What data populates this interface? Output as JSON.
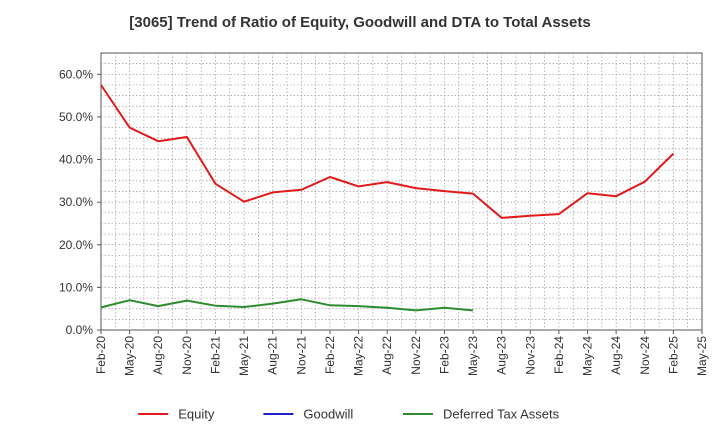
{
  "chart_data": {
    "type": "line",
    "title": "[3065]  Trend of Ratio of Equity, Goodwill and DTA to Total Assets",
    "xlabel": "",
    "ylabel": "",
    "x_ticks": [
      "Feb-20",
      "May-20",
      "Aug-20",
      "Nov-20",
      "Feb-21",
      "May-21",
      "Aug-21",
      "Nov-21",
      "Feb-22",
      "May-22",
      "Aug-22",
      "Nov-22",
      "Feb-23",
      "May-23",
      "Aug-23",
      "Nov-23",
      "Feb-24",
      "May-24",
      "Aug-24",
      "Nov-24",
      "Feb-25",
      "May-25"
    ],
    "y_ticks": [
      "0.0%",
      "10.0%",
      "20.0%",
      "30.0%",
      "40.0%",
      "50.0%",
      "60.0%"
    ],
    "y_tick_values": [
      0,
      10,
      20,
      30,
      40,
      50,
      60
    ],
    "ylim": [
      0,
      65
    ],
    "grid": true,
    "legend_position": "bottom",
    "series": [
      {
        "name": "Equity",
        "color": "#e31a1c",
        "x": [
          "Feb-20",
          "May-20",
          "Aug-20",
          "Nov-20",
          "Feb-21",
          "May-21",
          "Aug-21",
          "Nov-21",
          "Feb-22",
          "May-22",
          "Aug-22",
          "Nov-22",
          "Feb-23",
          "May-23",
          "Aug-23",
          "Nov-23",
          "Feb-24",
          "May-24",
          "Aug-24",
          "Nov-24",
          "Feb-25"
        ],
        "values": [
          57.5,
          47.5,
          44.3,
          45.3,
          34.3,
          30.1,
          32.3,
          32.9,
          35.9,
          33.7,
          34.7,
          33.3,
          32.6,
          32.0,
          26.3,
          26.8,
          27.2,
          32.1,
          31.4,
          34.8,
          41.4
        ]
      },
      {
        "name": "Goodwill",
        "color": "#1f1fcc",
        "x": [],
        "values": []
      },
      {
        "name": "Deferred Tax Assets",
        "color": "#2e8b2e",
        "x": [
          "Feb-20",
          "May-20",
          "Aug-20",
          "Nov-20",
          "Feb-21",
          "May-21",
          "Aug-21",
          "Nov-21",
          "Feb-22",
          "May-22",
          "Aug-22",
          "Nov-22",
          "Feb-23",
          "May-23"
        ],
        "values": [
          5.3,
          7.0,
          5.6,
          6.9,
          5.7,
          5.4,
          6.2,
          7.2,
          5.8,
          5.6,
          5.2,
          4.6,
          5.2,
          4.6
        ]
      }
    ]
  }
}
